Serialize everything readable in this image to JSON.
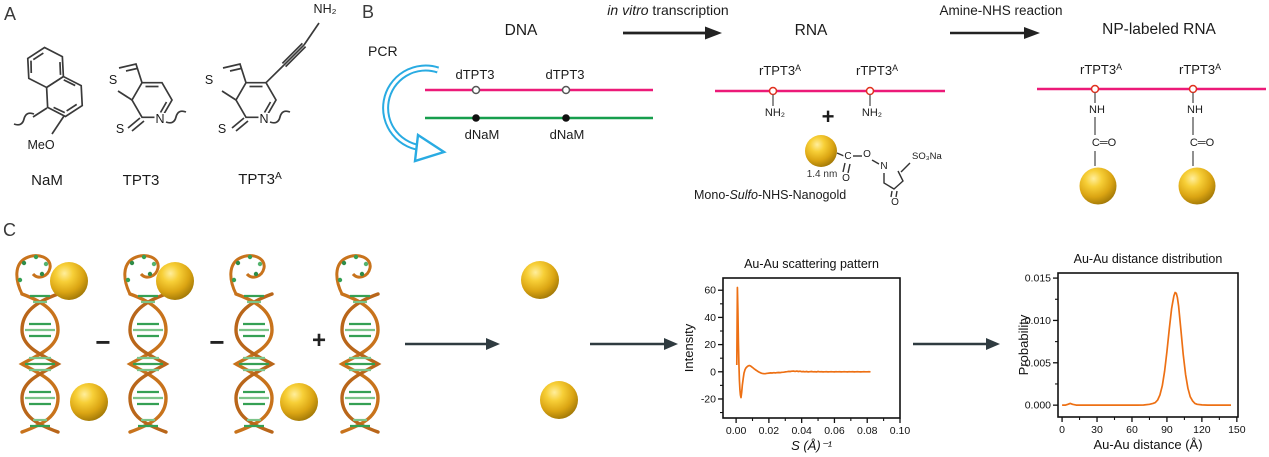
{
  "figure": {
    "panel_a_label": "A",
    "panel_b_label": "B",
    "panel_c_label": "C"
  },
  "panel_a": {
    "mol1_caption": "NaM",
    "mol1_sub": "MeO",
    "mol2_caption": "TPT3",
    "mol3_caption": "TPT3",
    "mol3_caption_sup": "A",
    "ring_s": "S",
    "thione_s": "S",
    "ring_n": "N",
    "amine": "NH₂"
  },
  "panel_b": {
    "pcr": "PCR",
    "dna_heading": "DNA",
    "step1_italic": "in vitro",
    "step1_rest": " transcription",
    "rna_heading": "RNA",
    "step2": "Amine-NHS reaction",
    "np_heading": "NP-labeled RNA",
    "dtpt3": "dTPT3",
    "dnam": "dNaM",
    "rtpt3": "rTPT3",
    "rtpt3_sup": "A",
    "nh2": "NH₂",
    "plus": "+",
    "nh": "NH",
    "co": "C═O",
    "gold_size": "1.4 nm",
    "atom_c": "C",
    "atom_o_carbonyl": "O",
    "atom_o_ester": "O",
    "atom_n": "N",
    "atom_o_ring": "O",
    "so3na": "SO₃Na",
    "gold_caption_pre": "Mono-",
    "gold_caption_italic": "Sulfo",
    "gold_caption_post": "-NHS-Nanogold"
  },
  "panel_c": {
    "minus1": "−",
    "minus2": "−",
    "plus": "+"
  },
  "colors": {
    "dna_sense_strand": "#ec1a78",
    "dna_antisense_strand": "#179e4d",
    "pcr_arrow": "#29abe2",
    "plot_line": "#ed7014",
    "gold_nanoparticle": "#e0a912",
    "helix_backbone": "#c8731c",
    "helix_bases": "#35a054"
  },
  "chart_data": [
    {
      "type": "line",
      "title": "Au-Au scattering pattern",
      "xlabel": "S (Å)⁻¹",
      "xlabel_italic": true,
      "ylabel": "Intensity",
      "xlim": [
        -0.008,
        0.1
      ],
      "ylim": [
        -34,
        69
      ],
      "xticks": [
        0,
        0.02,
        0.04,
        0.06,
        0.08,
        0.1
      ],
      "xtick_labels": [
        "0.00",
        "0.02",
        "0.04",
        "0.06",
        "0.08",
        "0.10"
      ],
      "yticks": [
        -20,
        0,
        20,
        40,
        60
      ],
      "ytick_labels": [
        "-20",
        "0",
        "20",
        "40",
        "60"
      ],
      "minor_x": 0.01,
      "minor_y": 10,
      "grid": false,
      "legend": null,
      "line_color": "#ed7014",
      "points": [
        [
          0.0004,
          5
        ],
        [
          0.0006,
          35
        ],
        [
          0.0008,
          62
        ],
        [
          0.0011,
          45
        ],
        [
          0.0014,
          22
        ],
        [
          0.0017,
          6
        ],
        [
          0.002,
          -6
        ],
        [
          0.0023,
          -13
        ],
        [
          0.0026,
          -17
        ],
        [
          0.003,
          -19
        ],
        [
          0.0034,
          -15
        ],
        [
          0.0038,
          -10
        ],
        [
          0.0043,
          -5
        ],
        [
          0.0048,
          -1
        ],
        [
          0.0054,
          1.5
        ],
        [
          0.006,
          2.8
        ],
        [
          0.0066,
          3.6
        ],
        [
          0.0072,
          4.2
        ],
        [
          0.008,
          4.6
        ],
        [
          0.0088,
          4.3
        ],
        [
          0.0096,
          3.6
        ],
        [
          0.0104,
          2.8
        ],
        [
          0.0112,
          2.0
        ],
        [
          0.012,
          1.3
        ],
        [
          0.013,
          0.5
        ],
        [
          0.014,
          -0.2
        ],
        [
          0.015,
          -0.8
        ],
        [
          0.016,
          -1.2
        ],
        [
          0.017,
          -1.4
        ],
        [
          0.018,
          -1.3
        ],
        [
          0.019,
          -1.1
        ],
        [
          0.02,
          -1.0
        ],
        [
          0.021,
          -0.8
        ],
        [
          0.022,
          -0.9
        ],
        [
          0.023,
          -0.7
        ],
        [
          0.024,
          -0.8
        ],
        [
          0.025,
          -0.6
        ],
        [
          0.026,
          -0.5
        ],
        [
          0.027,
          -0.6
        ],
        [
          0.028,
          -0.4
        ],
        [
          0.029,
          -0.3
        ],
        [
          0.03,
          -0.1
        ],
        [
          0.031,
          0.1
        ],
        [
          0.032,
          0.3
        ],
        [
          0.033,
          0.2
        ],
        [
          0.034,
          0.4
        ],
        [
          0.035,
          0.5
        ],
        [
          0.036,
          0.3
        ],
        [
          0.037,
          0.5
        ],
        [
          0.038,
          0.2
        ],
        [
          0.039,
          0.4
        ],
        [
          0.04,
          0.1
        ],
        [
          0.041,
          0.2
        ],
        [
          0.042,
          0.0
        ],
        [
          0.043,
          0.2
        ],
        [
          0.044,
          -0.1
        ],
        [
          0.045,
          0.1
        ],
        [
          0.046,
          0.2
        ],
        [
          0.047,
          0.0
        ],
        [
          0.048,
          0.1
        ],
        [
          0.049,
          -0.1
        ],
        [
          0.05,
          0.2
        ],
        [
          0.051,
          0.0
        ],
        [
          0.052,
          0.1
        ],
        [
          0.053,
          -0.1
        ],
        [
          0.054,
          0.0
        ],
        [
          0.055,
          0.1
        ],
        [
          0.056,
          -0.1
        ],
        [
          0.057,
          0.0
        ],
        [
          0.058,
          0.1
        ],
        [
          0.059,
          0.0
        ],
        [
          0.06,
          -0.1
        ],
        [
          0.061,
          0.1
        ],
        [
          0.062,
          0.0
        ],
        [
          0.063,
          0.1
        ],
        [
          0.064,
          -0.1
        ],
        [
          0.065,
          0.0
        ],
        [
          0.066,
          0.1
        ],
        [
          0.067,
          0.0
        ],
        [
          0.068,
          -0.1
        ],
        [
          0.069,
          0.1
        ],
        [
          0.07,
          0.0
        ],
        [
          0.071,
          0.1
        ],
        [
          0.072,
          -0.1
        ],
        [
          0.073,
          0.0
        ],
        [
          0.074,
          0.1
        ],
        [
          0.075,
          0.0
        ],
        [
          0.076,
          -0.1
        ],
        [
          0.077,
          0.0
        ],
        [
          0.078,
          0.1
        ],
        [
          0.079,
          0.0
        ],
        [
          0.08,
          0.0
        ],
        [
          0.081,
          0.1
        ],
        [
          0.082,
          0.0
        ]
      ]
    },
    {
      "type": "line",
      "title": "Au-Au distance distribution",
      "xlabel": "Au-Au distance (Å)",
      "xlabel_italic": false,
      "ylabel": "Probability",
      "xlim": [
        -3.5,
        151
      ],
      "ylim": [
        -0.0014,
        0.0156
      ],
      "xticks": [
        0,
        30,
        60,
        90,
        120,
        150
      ],
      "xtick_labels": [
        "0",
        "30",
        "60",
        "90",
        "120",
        "150"
      ],
      "yticks": [
        0,
        0.005,
        0.01,
        0.015
      ],
      "ytick_labels": [
        "0.000",
        "0.005",
        "0.010",
        "0.015"
      ],
      "minor_x": 15,
      "minor_y": 0.0025,
      "grid": false,
      "legend": null,
      "line_color": "#ed7014",
      "peak_center_angstrom": 97,
      "peak_probability": 0.0133,
      "points": [
        [
          0,
          0
        ],
        [
          3,
          0
        ],
        [
          5,
          0.0001
        ],
        [
          7,
          0.0002
        ],
        [
          9,
          0.0001
        ],
        [
          12,
          0
        ],
        [
          15,
          0
        ],
        [
          20,
          0
        ],
        [
          25,
          0
        ],
        [
          30,
          0
        ],
        [
          35,
          0
        ],
        [
          40,
          0
        ],
        [
          45,
          0
        ],
        [
          50,
          0
        ],
        [
          55,
          0
        ],
        [
          60,
          0
        ],
        [
          65,
          0
        ],
        [
          70,
          2e-05
        ],
        [
          75,
          0.0001
        ],
        [
          78,
          0.0002
        ],
        [
          80,
          0.0003
        ],
        [
          82,
          0.0006
        ],
        [
          84,
          0.0012
        ],
        [
          86,
          0.0023
        ],
        [
          88,
          0.004
        ],
        [
          90,
          0.0063
        ],
        [
          92,
          0.009
        ],
        [
          94,
          0.0114
        ],
        [
          95,
          0.0122
        ],
        [
          96,
          0.0129
        ],
        [
          97,
          0.0133
        ],
        [
          98,
          0.0132
        ],
        [
          99,
          0.0127
        ],
        [
          100,
          0.0117
        ],
        [
          102,
          0.0089
        ],
        [
          104,
          0.006
        ],
        [
          106,
          0.0036
        ],
        [
          108,
          0.002
        ],
        [
          110,
          0.001
        ],
        [
          112,
          0.0005
        ],
        [
          114,
          0.0002
        ],
        [
          116,
          0.0001
        ],
        [
          120,
          3e-05
        ],
        [
          125,
          0
        ],
        [
          130,
          0
        ],
        [
          135,
          0
        ],
        [
          140,
          0
        ],
        [
          145,
          0
        ]
      ]
    }
  ]
}
